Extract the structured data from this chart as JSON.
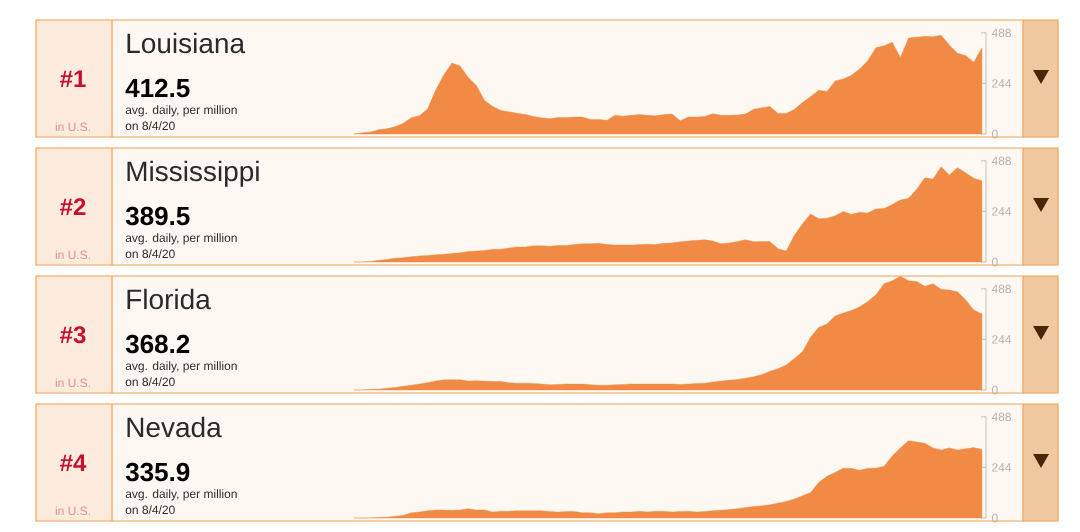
{
  "chart_data": [
    {
      "type": "area",
      "title": "Louisiana",
      "annotations": [
        "#1",
        "in U.S.",
        "412.5",
        "avg. daily, per million",
        "on 8/4/20"
      ],
      "color": "#f08a45",
      "ylim": [
        0,
        550
      ],
      "yticks": [
        0,
        244,
        488
      ],
      "categories": [
        null,
        null,
        null,
        null,
        null,
        null,
        null,
        null,
        null,
        null,
        null,
        null,
        null,
        null,
        null,
        null,
        null,
        null,
        null,
        null,
        null,
        null,
        null,
        null,
        null,
        null,
        null,
        null,
        null,
        null,
        null,
        null,
        null,
        null,
        null,
        null,
        null,
        null,
        null,
        null,
        null,
        null,
        null,
        null,
        null,
        null,
        null,
        null,
        null,
        null,
        null,
        null,
        null,
        null,
        null,
        null,
        null,
        null,
        null,
        null,
        null,
        null,
        null,
        null,
        null,
        null,
        null,
        null,
        null,
        null,
        null,
        null,
        null,
        null,
        null,
        null,
        null,
        null
      ],
      "values": [
        0,
        6,
        10,
        20,
        25,
        35,
        51,
        78,
        88,
        119,
        211,
        285,
        342,
        328,
        273,
        234,
        162,
        133,
        113,
        107,
        100,
        94,
        84,
        78,
        74,
        80,
        80,
        82,
        82,
        70,
        70,
        66,
        90,
        86,
        90,
        94,
        90,
        88,
        94,
        96,
        64,
        82,
        82,
        84,
        98,
        90,
        90,
        92,
        96,
        119,
        127,
        133,
        99,
        99,
        119,
        152,
        181,
        211,
        205,
        256,
        265,
        283,
        314,
        353,
        416,
        426,
        443,
        369,
        463,
        467,
        471,
        469,
        476,
        429,
        390,
        379,
        346,
        416
      ]
    },
    {
      "type": "area",
      "title": "Mississippi",
      "annotations": [
        "#2",
        "in U.S.",
        "389.5",
        "avg. daily, per million",
        "on 8/4/20"
      ],
      "color": "#f08a45",
      "ylim": [
        0,
        550
      ],
      "yticks": [
        0,
        244,
        488
      ],
      "categories": [
        null,
        null,
        null,
        null,
        null,
        null,
        null,
        null,
        null,
        null,
        null,
        null,
        null,
        null,
        null,
        null,
        null,
        null,
        null,
        null,
        null,
        null,
        null,
        null,
        null,
        null,
        null,
        null,
        null,
        null,
        null,
        null,
        null,
        null,
        null,
        null,
        null,
        null,
        null,
        null,
        null,
        null,
        null,
        null,
        null,
        null,
        null,
        null,
        null,
        null,
        null,
        null,
        null,
        null,
        null,
        null,
        null,
        null,
        null,
        null,
        null,
        null,
        null,
        null,
        null,
        null,
        null,
        null,
        null,
        null,
        null,
        null,
        null,
        null,
        null,
        null,
        null,
        null
      ],
      "values": [
        0,
        0,
        2,
        8,
        12,
        18,
        21,
        25,
        29,
        31,
        35,
        37,
        41,
        45,
        51,
        53,
        55,
        61,
        62,
        68,
        72,
        72,
        78,
        78,
        76,
        80,
        80,
        84,
        88,
        88,
        90,
        84,
        82,
        82,
        82,
        84,
        86,
        84,
        90,
        92,
        98,
        101,
        105,
        107,
        101,
        88,
        92,
        99,
        107,
        98,
        99,
        99,
        64,
        53,
        129,
        185,
        232,
        209,
        211,
        223,
        244,
        230,
        240,
        236,
        256,
        258,
        277,
        299,
        307,
        351,
        406,
        400,
        459,
        420,
        455,
        431,
        404,
        392
      ]
    },
    {
      "type": "area",
      "title": "Florida",
      "annotations": [
        "#3",
        "in U.S.",
        "368.2",
        "avg. daily, per million",
        "on 8/4/20"
      ],
      "color": "#f08a45",
      "ylim": [
        0,
        550
      ],
      "yticks": [
        0,
        244,
        488
      ],
      "categories": [
        null,
        null,
        null,
        null,
        null,
        null,
        null,
        null,
        null,
        null,
        null,
        null,
        null,
        null,
        null,
        null,
        null,
        null,
        null,
        null,
        null,
        null,
        null,
        null,
        null,
        null,
        null,
        null,
        null,
        null,
        null,
        null,
        null,
        null,
        null,
        null,
        null,
        null,
        null,
        null,
        null,
        null,
        null,
        null,
        null,
        null,
        null,
        null,
        null,
        null,
        null,
        null,
        null,
        null,
        null,
        null,
        null,
        null,
        null,
        null,
        null,
        null,
        null,
        null,
        null,
        null,
        null,
        null,
        null,
        null,
        null,
        null,
        null,
        null,
        null,
        null,
        null,
        null
      ],
      "values": [
        0,
        0,
        2,
        4,
        8,
        12,
        18,
        23,
        29,
        35,
        43,
        49,
        49,
        49,
        43,
        45,
        43,
        41,
        41,
        35,
        33,
        33,
        31,
        29,
        25,
        27,
        29,
        29,
        29,
        25,
        23,
        23,
        25,
        27,
        29,
        29,
        29,
        29,
        29,
        29,
        27,
        29,
        31,
        33,
        39,
        43,
        47,
        51,
        57,
        64,
        74,
        90,
        103,
        121,
        152,
        185,
        256,
        303,
        318,
        357,
        371,
        384,
        402,
        427,
        459,
        513,
        527,
        549,
        527,
        523,
        500,
        513,
        486,
        482,
        474,
        435,
        386,
        367
      ]
    },
    {
      "type": "area",
      "title": "Nevada",
      "annotations": [
        "#4",
        "in U.S.",
        "335.9",
        "avg. daily, per million",
        "on 8/4/20"
      ],
      "color": "#f08a45",
      "ylim": [
        0,
        550
      ],
      "yticks": [
        0,
        244,
        488
      ],
      "categories": [
        null,
        null,
        null,
        null,
        null,
        null,
        null,
        null,
        null,
        null,
        null,
        null,
        null,
        null,
        null,
        null,
        null,
        null,
        null,
        null,
        null,
        null,
        null,
        null,
        null,
        null,
        null,
        null,
        null,
        null,
        null,
        null,
        null,
        null,
        null,
        null,
        null,
        null,
        null,
        null,
        null,
        null,
        null,
        null,
        null,
        null,
        null,
        null,
        null,
        null,
        null,
        null,
        null,
        null,
        null,
        null,
        null,
        null,
        null,
        null,
        null,
        null,
        null,
        null,
        null,
        null,
        null,
        null,
        null,
        null,
        null,
        null,
        null,
        null,
        null,
        null,
        null,
        null
      ],
      "values": [
        0,
        0,
        0,
        2,
        4,
        8,
        12,
        25,
        29,
        35,
        39,
        39,
        37,
        39,
        45,
        39,
        39,
        29,
        33,
        33,
        35,
        35,
        35,
        35,
        31,
        29,
        31,
        31,
        25,
        25,
        21,
        25,
        25,
        29,
        29,
        33,
        29,
        33,
        33,
        29,
        31,
        33,
        29,
        31,
        35,
        37,
        41,
        45,
        51,
        55,
        59,
        64,
        72,
        80,
        92,
        107,
        123,
        172,
        201,
        220,
        240,
        240,
        230,
        240,
        240,
        250,
        299,
        338,
        373,
        367,
        361,
        338,
        328,
        338,
        328,
        334,
        340,
        330
      ]
    }
  ]
}
